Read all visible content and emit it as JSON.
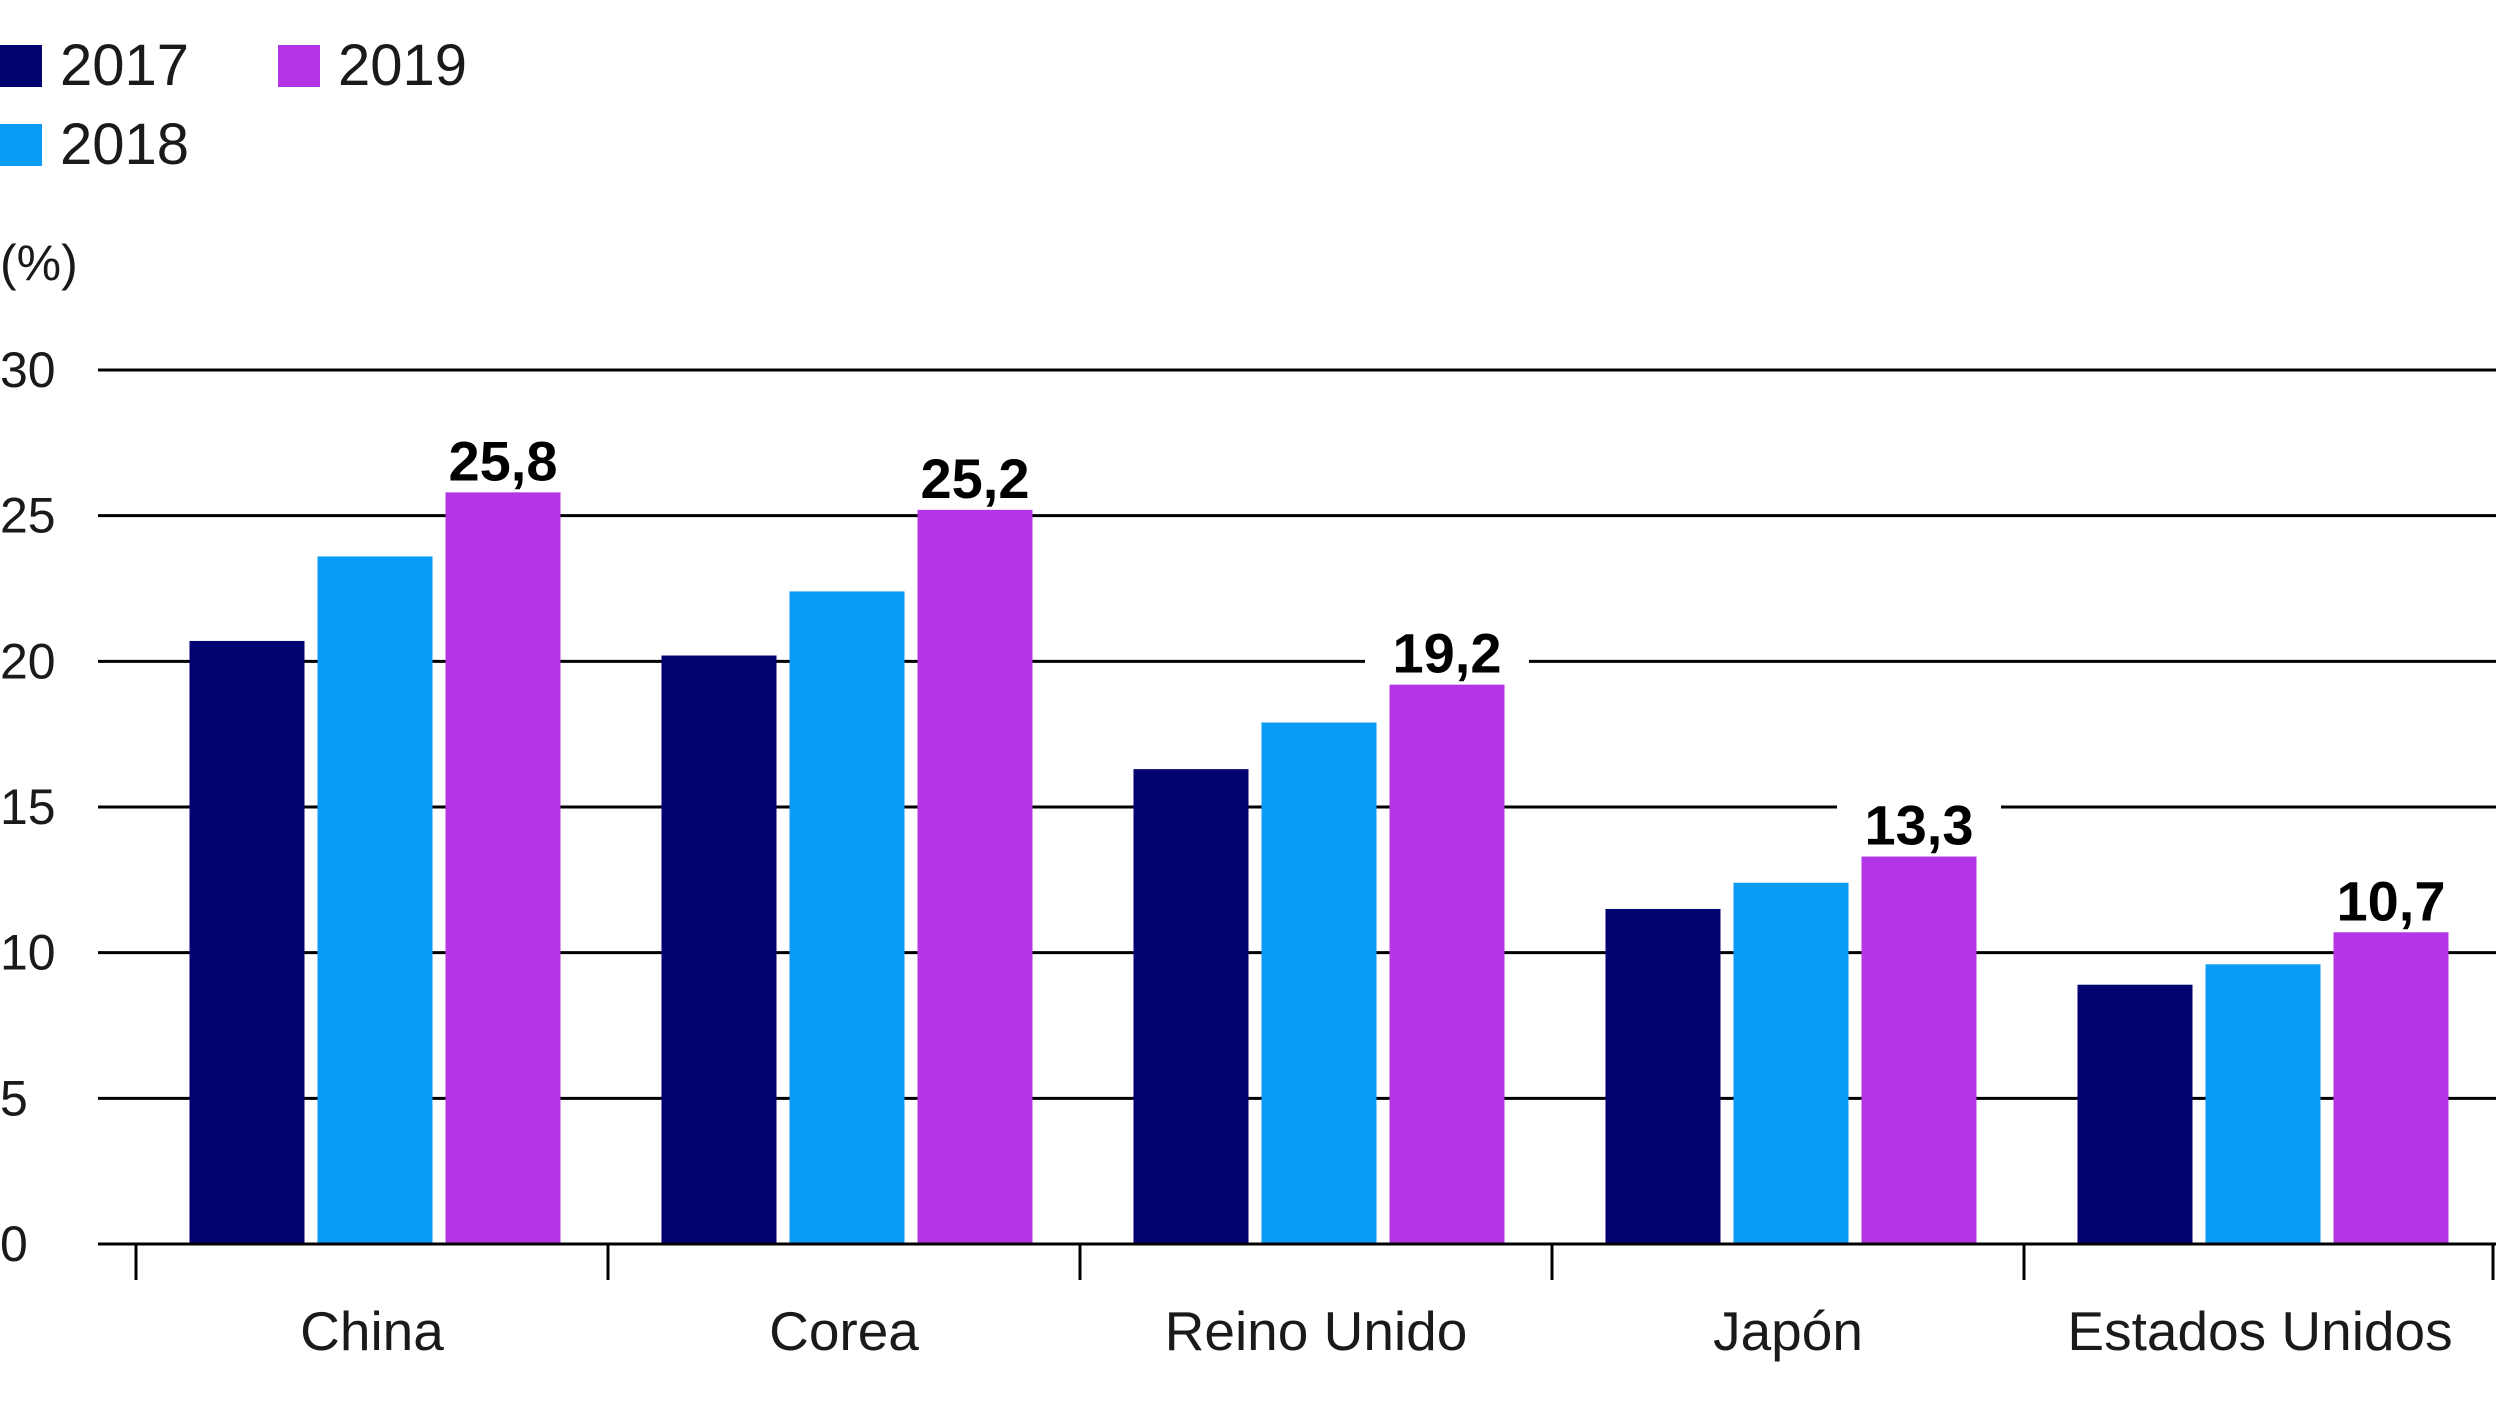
{
  "chart_data": {
    "type": "bar",
    "unit_label": "(%)",
    "categories": [
      "China",
      "Corea",
      "Reino Unido",
      "Japón",
      "Estados Unidos"
    ],
    "series": [
      {
        "name": "2017",
        "color": "#020270",
        "values": [
          20.7,
          20.2,
          16.3,
          11.5,
          8.9
        ]
      },
      {
        "name": "2018",
        "color": "#0a9bf5",
        "values": [
          23.6,
          22.4,
          17.9,
          12.4,
          9.6
        ]
      },
      {
        "name": "2019",
        "color": "#b435e6",
        "values": [
          25.8,
          25.2,
          19.2,
          13.3,
          10.7
        ]
      }
    ],
    "data_labels": [
      "25,8",
      "25,2",
      "19,2",
      "13,3",
      "10,7"
    ],
    "y_ticks": [
      0,
      5,
      10,
      15,
      20,
      25,
      30
    ],
    "ylim": [
      0,
      30
    ],
    "grid": true,
    "legend_position": "top-left"
  }
}
